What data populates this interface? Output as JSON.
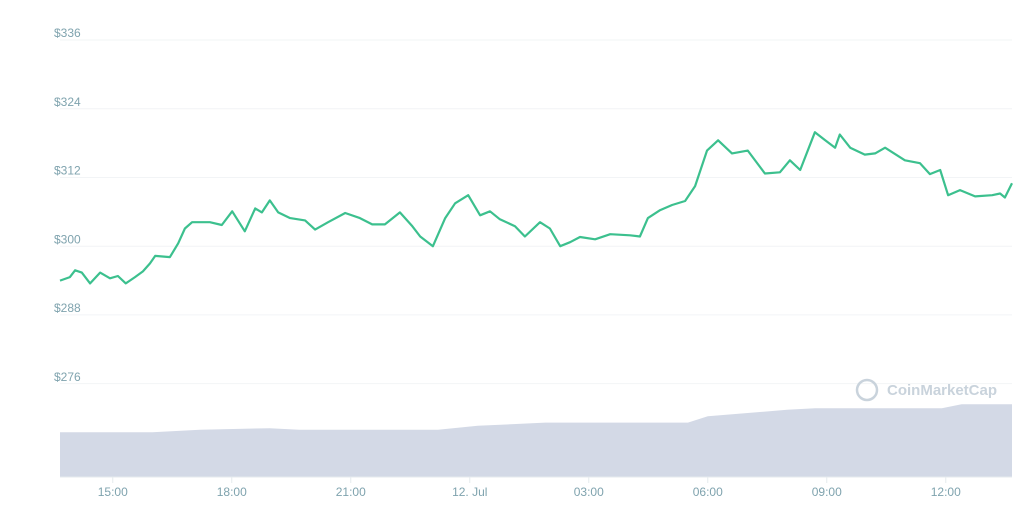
{
  "chart_data": {
    "type": "line",
    "x": [
      13.67,
      13.92,
      14.05,
      14.22,
      14.43,
      14.68,
      14.93,
      15.13,
      15.33,
      15.56,
      15.76,
      15.94,
      16.07,
      16.44,
      16.65,
      16.82,
      17.0,
      17.2,
      17.45,
      17.75,
      18.01,
      18.33,
      18.59,
      18.76,
      18.96,
      19.17,
      19.47,
      19.85,
      20.1,
      20.43,
      20.86,
      21.23,
      21.54,
      21.86,
      22.24,
      22.54,
      22.75,
      23.07,
      23.38,
      23.63,
      23.96,
      24.26,
      24.51,
      24.76,
      25.14,
      25.39,
      25.77,
      26.02,
      26.28,
      26.53,
      26.78,
      27.16,
      27.54,
      28.04,
      28.29,
      28.49,
      28.8,
      29.1,
      29.43,
      29.68,
      29.98,
      30.26,
      30.61,
      31.01,
      31.44,
      31.82,
      32.07,
      32.33,
      32.7,
      32.96,
      33.21,
      33.33,
      33.59,
      33.96,
      34.22,
      34.47,
      34.97,
      35.35,
      35.6,
      35.86,
      36.06,
      36.36,
      36.74,
      37.17,
      37.37,
      37.49,
      37.67
    ],
    "values": [
      294.0,
      294.6,
      295.8,
      295.4,
      293.5,
      295.4,
      294.4,
      294.8,
      293.5,
      294.6,
      295.6,
      297.0,
      298.3,
      298.1,
      300.5,
      303.1,
      304.2,
      304.2,
      304.2,
      303.7,
      306.1,
      302.6,
      306.6,
      305.9,
      308.0,
      305.9,
      304.9,
      304.5,
      302.9,
      304.2,
      305.8,
      304.9,
      303.8,
      303.8,
      305.9,
      303.6,
      301.7,
      300.0,
      304.9,
      307.5,
      308.9,
      305.4,
      306.1,
      304.7,
      303.5,
      301.7,
      304.2,
      303.1,
      300.0,
      300.7,
      301.6,
      301.2,
      302.1,
      301.9,
      301.7,
      304.9,
      306.3,
      307.2,
      307.9,
      310.5,
      316.7,
      318.5,
      316.2,
      316.7,
      312.7,
      312.9,
      315.0,
      313.3,
      319.9,
      318.5,
      317.2,
      319.5,
      317.2,
      316.0,
      316.2,
      317.2,
      315.0,
      314.5,
      312.6,
      313.3,
      308.9,
      309.8,
      308.7,
      308.9,
      309.2,
      308.5,
      311.0
    ],
    "color": "#3cc08e",
    "xlim": [
      13.67,
      37.67
    ],
    "xticks": [
      {
        "value": 15,
        "label": "15:00"
      },
      {
        "value": 18,
        "label": "18:00"
      },
      {
        "value": 21,
        "label": "21:00"
      },
      {
        "value": 24,
        "label": "12. Jul"
      },
      {
        "value": 27,
        "label": "03:00"
      },
      {
        "value": 30,
        "label": "06:00"
      },
      {
        "value": 33,
        "label": "09:00"
      },
      {
        "value": 36,
        "label": "12:00"
      }
    ],
    "ylim": [
      259.7,
      339.5
    ],
    "yticks": [
      {
        "value": 276,
        "label": "$276"
      },
      {
        "value": 288,
        "label": "$288"
      },
      {
        "value": 300,
        "label": "$300"
      },
      {
        "value": 312,
        "label": "$312"
      },
      {
        "value": 324,
        "label": "$324"
      },
      {
        "value": 336,
        "label": "$336"
      }
    ],
    "grid": true,
    "volume": {
      "x": [
        13.67,
        16.0,
        17.2,
        18.96,
        19.7,
        23.2,
        24.2,
        25.9,
        29.5,
        30.0,
        32.0,
        32.7,
        35.9,
        36.4,
        37.67
      ],
      "values": [
        56,
        56,
        59,
        61,
        59,
        59,
        64,
        68,
        68,
        76,
        84,
        86,
        86,
        91,
        91
      ],
      "color": "#d3d9e6",
      "y2lim": [
        0,
        100
      ]
    },
    "watermark": "CoinMarketCap"
  }
}
